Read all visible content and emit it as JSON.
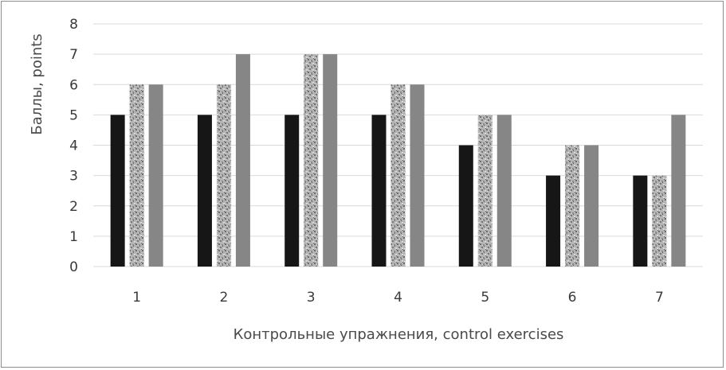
{
  "chart_data": {
    "type": "bar",
    "title": "",
    "xlabel": "Контрольные упражнения, control exercises",
    "ylabel": "Баллы, points",
    "categories": [
      "1",
      "2",
      "3",
      "4",
      "5",
      "6",
      "7"
    ],
    "ylim": [
      0,
      8
    ],
    "yticks": [
      0,
      1,
      2,
      3,
      4,
      5,
      6,
      7,
      8
    ],
    "grid": true,
    "legend": "none",
    "series": [
      {
        "values": [
          5,
          5,
          5,
          5,
          4,
          3,
          3
        ],
        "color": "#161616",
        "pattern": "solid"
      },
      {
        "values": [
          6,
          6,
          7,
          6,
          5,
          4,
          3
        ],
        "color": "#a8a8a8",
        "pattern": "speckled"
      },
      {
        "values": [
          6,
          7,
          7,
          6,
          5,
          4,
          5
        ],
        "color": "#868686",
        "pattern": "solid"
      }
    ],
    "gridline_color": "#d9d9d9"
  }
}
